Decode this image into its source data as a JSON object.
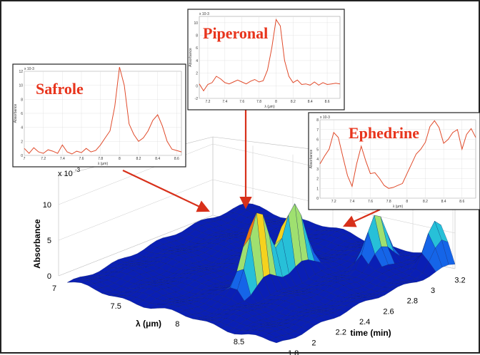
{
  "chart_data": [
    {
      "type": "surface",
      "name_shown": "",
      "zlabel": "Absorbance",
      "xlabel": "λ (μm)",
      "ylabel": "time (min)",
      "z_exponent": "x 10-3",
      "z_ticks": [
        "0",
        "5",
        "10"
      ],
      "x_ticks": [
        "7",
        "7.5",
        "8",
        "8.5"
      ],
      "y_ticks": [
        "1.8",
        "2",
        "2.2",
        "2.4",
        "2.6",
        "2.8",
        "3",
        "3.2"
      ],
      "zlim": [
        0,
        12
      ],
      "xlim": [
        7,
        8.7
      ],
      "ylim": [
        1.8,
        3.3
      ],
      "colormap": [
        "#0a1fb5",
        "#1565e8",
        "#27c0d8",
        "#9fe070",
        "#f5d21e",
        "#f07a10",
        "#d01a10"
      ],
      "peaks": [
        {
          "lambda": 8.0,
          "time": 2.35,
          "z": 12.5
        },
        {
          "lambda": 8.0,
          "time": 2.65,
          "z": 11.0
        },
        {
          "lambda": 8.3,
          "time": 3.05,
          "z": 7.0
        },
        {
          "lambda": 8.6,
          "time": 3.25,
          "z": 6.0
        }
      ],
      "grid": true
    },
    {
      "type": "line",
      "title": "Safrole",
      "ylabel": "Absorbance",
      "xlabel": "λ (μm)",
      "y_exponent": "x 10-3",
      "xlim": [
        7.0,
        8.65
      ],
      "ylim": [
        0,
        12
      ],
      "x_ticks": [
        "7",
        "7.2",
        "7.4",
        "7.6",
        "7.8",
        "8",
        "8.2",
        "8.4",
        "8.6"
      ],
      "y_ticks": [
        "0",
        "2",
        "4",
        "6",
        "8",
        "10",
        "12"
      ],
      "x": [
        7.0,
        7.05,
        7.1,
        7.15,
        7.2,
        7.25,
        7.3,
        7.35,
        7.4,
        7.45,
        7.5,
        7.55,
        7.6,
        7.65,
        7.7,
        7.75,
        7.8,
        7.85,
        7.9,
        7.95,
        8.0,
        8.05,
        8.1,
        8.15,
        8.2,
        8.25,
        8.3,
        8.35,
        8.4,
        8.45,
        8.5,
        8.55,
        8.6,
        8.65
      ],
      "y": [
        1.0,
        0.3,
        1.1,
        0.5,
        0.3,
        0.8,
        0.6,
        0.3,
        1.5,
        0.5,
        0.2,
        0.6,
        0.4,
        1.0,
        0.5,
        0.7,
        1.5,
        2.5,
        3.5,
        7.0,
        12.6,
        10.0,
        4.5,
        3.0,
        2.0,
        2.5,
        3.5,
        5.0,
        5.8,
        4.2,
        2.0,
        0.9,
        0.7,
        0.5
      ],
      "color": "#e04a2a"
    },
    {
      "type": "line",
      "title": "Piperonal",
      "ylabel": "Absorbance",
      "xlabel": "λ (μm)",
      "y_exponent": "x 10-3",
      "xlim": [
        7.1,
        8.75
      ],
      "ylim": [
        -2,
        11
      ],
      "x_ticks": [
        "7.2",
        "7.4",
        "7.6",
        "7.8",
        "8",
        "8.2",
        "8.4",
        "8.6"
      ],
      "y_ticks": [
        "-2",
        "0",
        "2",
        "4",
        "6",
        "8",
        "10"
      ],
      "x": [
        7.1,
        7.15,
        7.2,
        7.25,
        7.3,
        7.35,
        7.4,
        7.45,
        7.5,
        7.55,
        7.6,
        7.65,
        7.7,
        7.75,
        7.8,
        7.85,
        7.9,
        7.95,
        8.0,
        8.05,
        8.1,
        8.15,
        8.2,
        8.25,
        8.3,
        8.35,
        8.4,
        8.45,
        8.5,
        8.55,
        8.6,
        8.65,
        8.7,
        8.75
      ],
      "y": [
        0.3,
        -0.8,
        0.2,
        0.5,
        1.5,
        1.1,
        0.5,
        0.3,
        0.6,
        0.9,
        0.6,
        0.3,
        0.7,
        1.0,
        0.6,
        0.8,
        2.5,
        6.0,
        10.5,
        9.5,
        4.0,
        1.5,
        0.5,
        0.9,
        0.2,
        0.3,
        0.1,
        0.6,
        0.1,
        0.5,
        0.2,
        0.3,
        0.4,
        0.3
      ],
      "color": "#e04a2a"
    },
    {
      "type": "line",
      "title": "Ephedrine",
      "ylabel": "Absorbance",
      "xlabel": "λ (μm)",
      "y_exponent": "x 10-3",
      "xlim": [
        7.05,
        8.75
      ],
      "ylim": [
        0,
        8
      ],
      "x_ticks": [
        "7.2",
        "7.4",
        "7.6",
        "7.8",
        "8",
        "8.2",
        "8.4",
        "8.6"
      ],
      "y_ticks": [
        "0",
        "1",
        "2",
        "3",
        "4",
        "5",
        "6",
        "7",
        "8"
      ],
      "x": [
        7.05,
        7.1,
        7.15,
        7.2,
        7.25,
        7.3,
        7.35,
        7.4,
        7.45,
        7.5,
        7.55,
        7.6,
        7.65,
        7.7,
        7.75,
        7.8,
        7.85,
        7.9,
        7.95,
        8.0,
        8.05,
        8.1,
        8.15,
        8.2,
        8.25,
        8.3,
        8.35,
        8.4,
        8.45,
        8.5,
        8.55,
        8.6,
        8.65,
        8.7,
        8.75
      ],
      "y": [
        3.5,
        4.3,
        5.0,
        6.7,
        6.2,
        4.2,
        2.3,
        1.2,
        3.5,
        5.3,
        3.8,
        2.5,
        2.6,
        2.0,
        1.3,
        1.0,
        1.1,
        1.3,
        1.5,
        2.5,
        3.5,
        4.5,
        5.0,
        5.7,
        7.3,
        7.9,
        7.2,
        5.6,
        6.0,
        6.7,
        7.0,
        5.0,
        6.5,
        7.1,
        6.2
      ],
      "color": "#e04a2a"
    }
  ]
}
